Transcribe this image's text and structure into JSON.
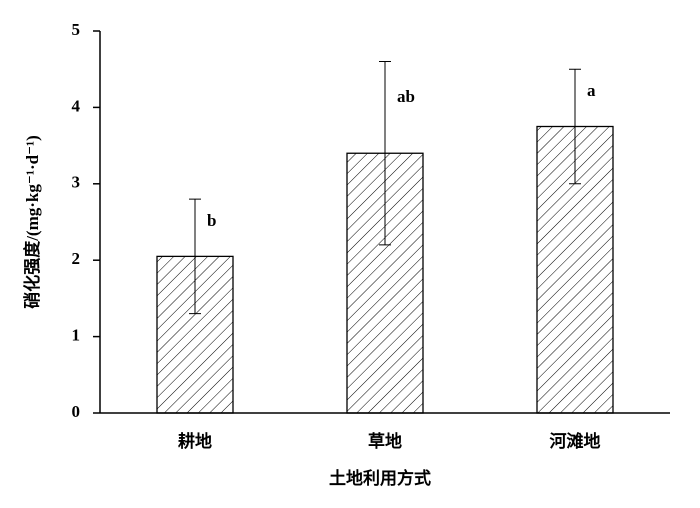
{
  "chart_data": {
    "type": "bar",
    "x_label": "土地利用方式",
    "y_label": "硝化强度/(mg·kg⁻¹·d⁻¹)",
    "categories": [
      "耕地",
      "草地",
      "河滩地"
    ],
    "values": [
      2.05,
      3.4,
      3.75
    ],
    "errors": [
      0.75,
      1.2,
      0.75
    ],
    "significance": [
      "b",
      "ab",
      "a"
    ],
    "color": "#000000",
    "hatch": "diagonal",
    "ylim": [
      0,
      5
    ],
    "yticks": [
      0,
      1,
      2,
      3,
      4,
      5
    ],
    "grid": false
  }
}
